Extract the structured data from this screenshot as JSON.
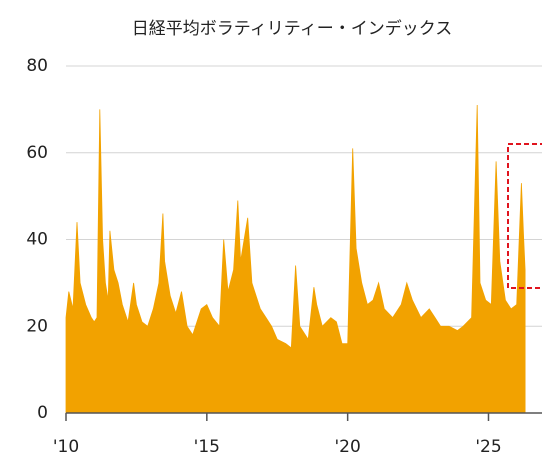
{
  "chart_data": {
    "type": "area",
    "title": "日経平均ボラティリティー・インデックス",
    "color": "#f2a200",
    "grid": true,
    "xlim": [
      2010,
      2026.9
    ],
    "ylim": [
      0,
      80
    ],
    "xticks": [
      {
        "value": 2010,
        "label": "'10"
      },
      {
        "value": 2015,
        "label": "'15"
      },
      {
        "value": 2020,
        "label": "'20"
      },
      {
        "value": 2025,
        "label": "'25"
      }
    ],
    "yticks": [
      0,
      20,
      40,
      60,
      80
    ],
    "x": [
      2010.0,
      2010.1,
      2010.25,
      2010.39,
      2010.5,
      2010.7,
      2010.9,
      2011.0,
      2011.1,
      2011.2,
      2011.3,
      2011.4,
      2011.5,
      2011.56,
      2011.7,
      2011.85,
      2012.0,
      2012.2,
      2012.4,
      2012.5,
      2012.7,
      2012.9,
      2013.1,
      2013.3,
      2013.44,
      2013.5,
      2013.7,
      2013.9,
      2014.1,
      2014.3,
      2014.5,
      2014.8,
      2015.0,
      2015.2,
      2015.45,
      2015.6,
      2015.75,
      2015.95,
      2016.1,
      2016.2,
      2016.45,
      2016.6,
      2016.9,
      2017.1,
      2017.3,
      2017.5,
      2017.8,
      2018.0,
      2018.15,
      2018.3,
      2018.6,
      2018.8,
      2018.9,
      2019.1,
      2019.4,
      2019.6,
      2019.8,
      2020.0,
      2020.18,
      2020.3,
      2020.5,
      2020.7,
      2020.9,
      2021.1,
      2021.3,
      2021.6,
      2021.9,
      2022.1,
      2022.3,
      2022.6,
      2022.9,
      2023.1,
      2023.3,
      2023.6,
      2023.9,
      2024.1,
      2024.4,
      2024.6,
      2024.7,
      2024.9,
      2025.1,
      2025.27,
      2025.4,
      2025.6,
      2025.8,
      2026.0,
      2026.17,
      2026.25,
      2026.3
    ],
    "values": [
      22,
      28,
      24,
      44,
      30,
      25,
      22,
      21,
      22,
      70,
      40,
      30,
      26,
      42,
      33,
      30,
      25,
      21,
      30,
      25,
      21,
      20,
      24,
      30,
      46,
      35,
      27,
      23,
      28,
      20,
      18,
      24,
      25,
      22,
      20,
      40,
      28,
      33,
      49,
      35,
      45,
      30,
      24,
      22,
      20,
      17,
      16,
      15,
      34,
      20,
      17,
      29,
      25,
      20,
      22,
      21,
      16,
      16,
      61,
      38,
      30,
      25,
      26,
      30,
      24,
      22,
      25,
      30,
      26,
      22,
      24,
      22,
      20,
      20,
      19,
      20,
      22,
      71,
      30,
      26,
      25,
      58,
      35,
      26,
      24,
      25,
      53,
      40,
      33
    ]
  }
}
